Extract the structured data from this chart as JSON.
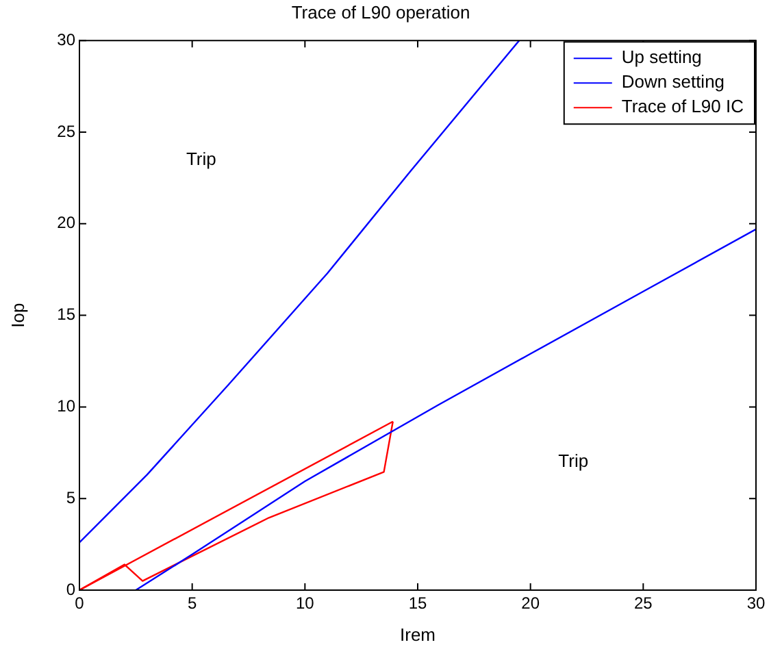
{
  "chart_data": {
    "type": "line",
    "title": "Trace of L90 operation",
    "xlabel": "Irem",
    "ylabel": "Iop",
    "series": [
      {
        "name": "Up setting",
        "color": "#0000ff",
        "x": [
          0,
          3,
          6.6,
          11,
          14.7,
          19.5
        ],
        "values": [
          2.6,
          6.3,
          11.2,
          17.3,
          22.9,
          30
        ]
      },
      {
        "name": "Down setting",
        "color": "#0000ff",
        "x": [
          2.5,
          5,
          10,
          15.9,
          20,
          25,
          30
        ],
        "values": [
          0,
          1.95,
          5.94,
          10.1,
          12.9,
          16.3,
          19.7
        ]
      },
      {
        "name": "Trace of L90 IC",
        "color": "#ff0000",
        "x": [
          0,
          2,
          2.8,
          8.4,
          13.5,
          13.9
        ],
        "values": [
          0,
          1.4,
          0.5,
          3.95,
          6.45,
          9.2
        ]
      },
      {
        "color": "#ff0000",
        "x": [
          0,
          13.9
        ],
        "values": [
          0,
          9.2
        ]
      }
    ],
    "xlim": [
      0,
      30
    ],
    "ylim": [
      0,
      30
    ],
    "xticks": [
      0,
      5,
      10,
      15,
      20,
      25,
      30
    ],
    "yticks": [
      0,
      5,
      10,
      15,
      20,
      25,
      30
    ],
    "annotations": [
      "Trip",
      "Trip"
    ],
    "legend": "top right",
    "grid": false,
    "marker": "none",
    "line_style": "solid"
  }
}
